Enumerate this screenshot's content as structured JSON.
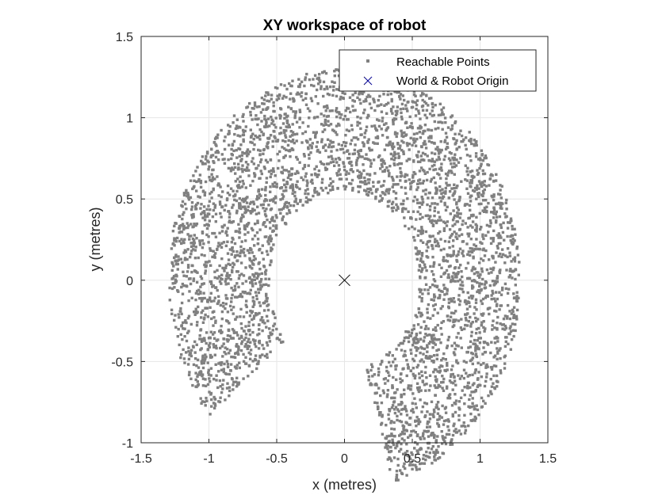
{
  "chart_data": {
    "type": "scatter",
    "title": "XY workspace of robot",
    "xlabel": "x (metres)",
    "ylabel": "y (metres)",
    "xlim": [
      -1.5,
      1.5
    ],
    "ylim": [
      -1,
      1.5
    ],
    "xticks": [
      -1.5,
      -1,
      -0.5,
      0,
      0.5,
      1,
      1.5
    ],
    "yticks": [
      -1,
      -0.5,
      0,
      0.5,
      1,
      1.5
    ],
    "xtick_labels": [
      "-1.5",
      "-1",
      "-0.5",
      "0",
      "0.5",
      "1",
      "1.5"
    ],
    "ytick_labels": [
      "-1",
      "-0.5",
      "0",
      "0.5",
      "1",
      "1.5"
    ],
    "grid": true,
    "legend_position": "top-right",
    "series": [
      {
        "name": "Reachable Points",
        "marker": "square",
        "color": "#808080",
        "region": {
          "shape": "annular-sector",
          "center": [
            0,
            0
          ],
          "inner_radius": 0.55,
          "outer_radius": 1.3,
          "angle_start_deg": -74,
          "angle_end_deg": 220,
          "count": 4200
        }
      },
      {
        "name": "World & Robot Origin",
        "marker": "x",
        "color": "#000000",
        "legend_color": "#0000cc",
        "x": [
          0
        ],
        "y": [
          0
        ]
      }
    ]
  }
}
